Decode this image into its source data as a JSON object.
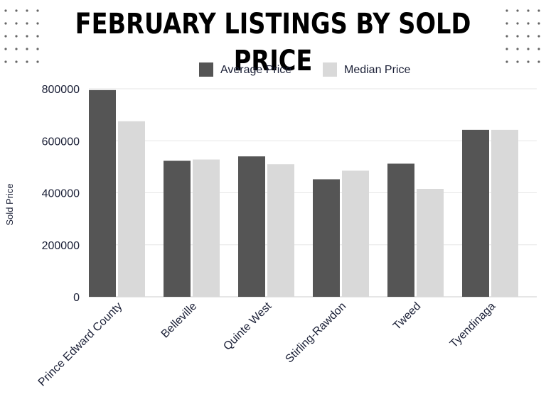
{
  "colors": {
    "average": "#555555",
    "median": "#d9d9d9",
    "grid": "#e6e6e6",
    "dots": "#666666"
  },
  "chart_data": {
    "type": "bar",
    "title": "FEBRUARY LISTINGS BY SOLD PRICE",
    "xlabel": "",
    "ylabel": "Sold Price",
    "ylim": [
      0,
      800000
    ],
    "yticks": [
      0,
      200000,
      400000,
      600000,
      800000
    ],
    "ytick_labels": [
      "0",
      "200000",
      "400000",
      "600000",
      "800000"
    ],
    "grid": true,
    "legend_position": "top",
    "categories": [
      "Prince Edward County",
      "Belleville",
      "Quinte West",
      "Stirling-Rawdon",
      "Tweed",
      "Tyendinaga"
    ],
    "series": [
      {
        "name": "Average Price",
        "color": "#555555",
        "values": [
          795000,
          523000,
          540000,
          452000,
          512000,
          642000
        ]
      },
      {
        "name": "Median Price",
        "color": "#d9d9d9",
        "values": [
          675000,
          528000,
          510000,
          485000,
          415000,
          642000
        ]
      }
    ]
  }
}
